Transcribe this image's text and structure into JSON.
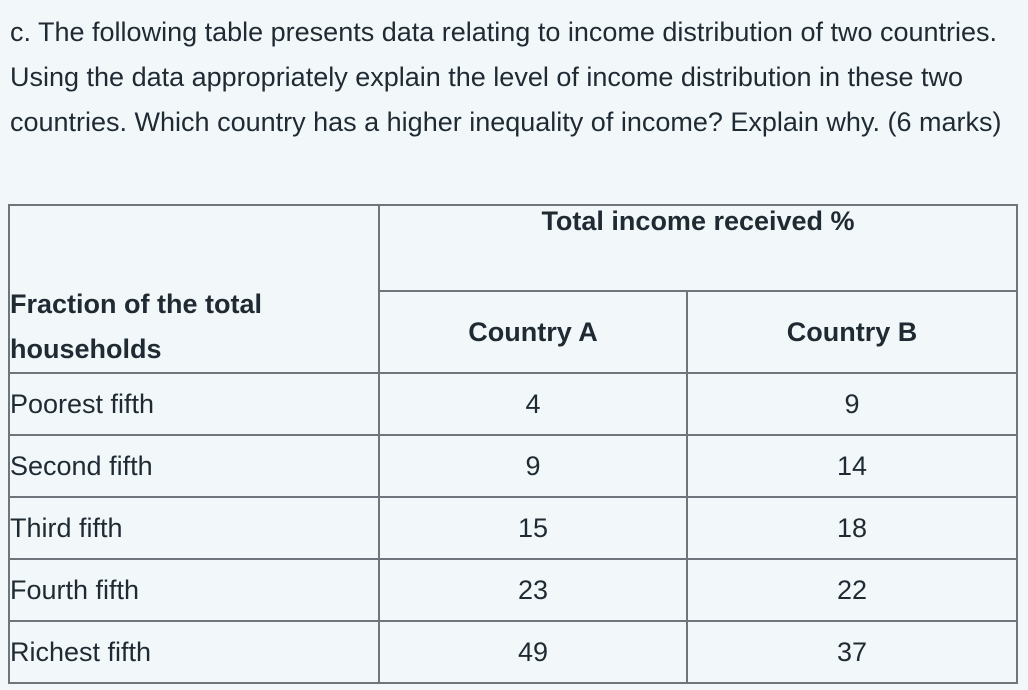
{
  "question": {
    "text": "c. The following table presents data relating to income distribution of two countries. Using the data appropriately explain the level of income distribution in these two countries.  Which country has a higher inequality of income? Explain why.  (6 marks)"
  },
  "table": {
    "row_header": "Fraction of the total households",
    "group_header": "Total income received  %",
    "columns": [
      "Country A",
      "Country B"
    ],
    "rows": [
      {
        "label": "Poorest fifth",
        "a": "4",
        "b": "9"
      },
      {
        "label": "Second fifth",
        "a": "9",
        "b": "14"
      },
      {
        "label": "Third fifth",
        "a": "15",
        "b": "18"
      },
      {
        "label": "Fourth fifth",
        "a": "23",
        "b": "22"
      },
      {
        "label": "Richest fifth",
        "a": "49",
        "b": "37"
      }
    ]
  }
}
